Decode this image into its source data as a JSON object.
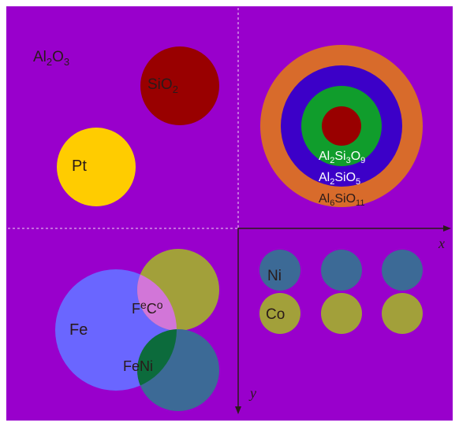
{
  "colors": {
    "background": "#9900cc",
    "white_frame": "#ffffff",
    "divider": "#f2d9f2",
    "sio2": "#990000",
    "pt": "#ffcc00",
    "ring_outer": "#d86b2b",
    "ring_blue": "#3c00c8",
    "ring_green": "#109d2c",
    "ring_center": "#990000",
    "fe": "#6a66ff",
    "olive": "#a2a03a",
    "teal": "#3c6a96",
    "feco_overlap": "#d276d8",
    "feni_overlap": "#0c6b3c",
    "label_dark": "#2a1a1a",
    "label_white": "#ffffff"
  },
  "labels": {
    "al2o3": {
      "base": "Al",
      "s1": "2",
      "mid": "O",
      "s2": "3"
    },
    "sio2": {
      "base": "SiO",
      "s1": "2"
    },
    "pt": "Pt",
    "al2si3o9": {
      "a": "Al",
      "s1": "2",
      "b": "Si",
      "s2": "3",
      "c": "O",
      "s3": "9"
    },
    "al2sio5": {
      "a": "Al",
      "s1": "2",
      "b": "SiO",
      "s2": "5"
    },
    "al6sio11": {
      "a": "Al",
      "s1": "6",
      "b": "SiO",
      "s2": "11"
    },
    "fe": "Fe",
    "feco": {
      "a": "F",
      "b": "e",
      "c": "C",
      "d": "o"
    },
    "feni": "FeNi",
    "ni": "Ni",
    "co": "Co",
    "x_axis": "x",
    "y_axis": "y"
  }
}
